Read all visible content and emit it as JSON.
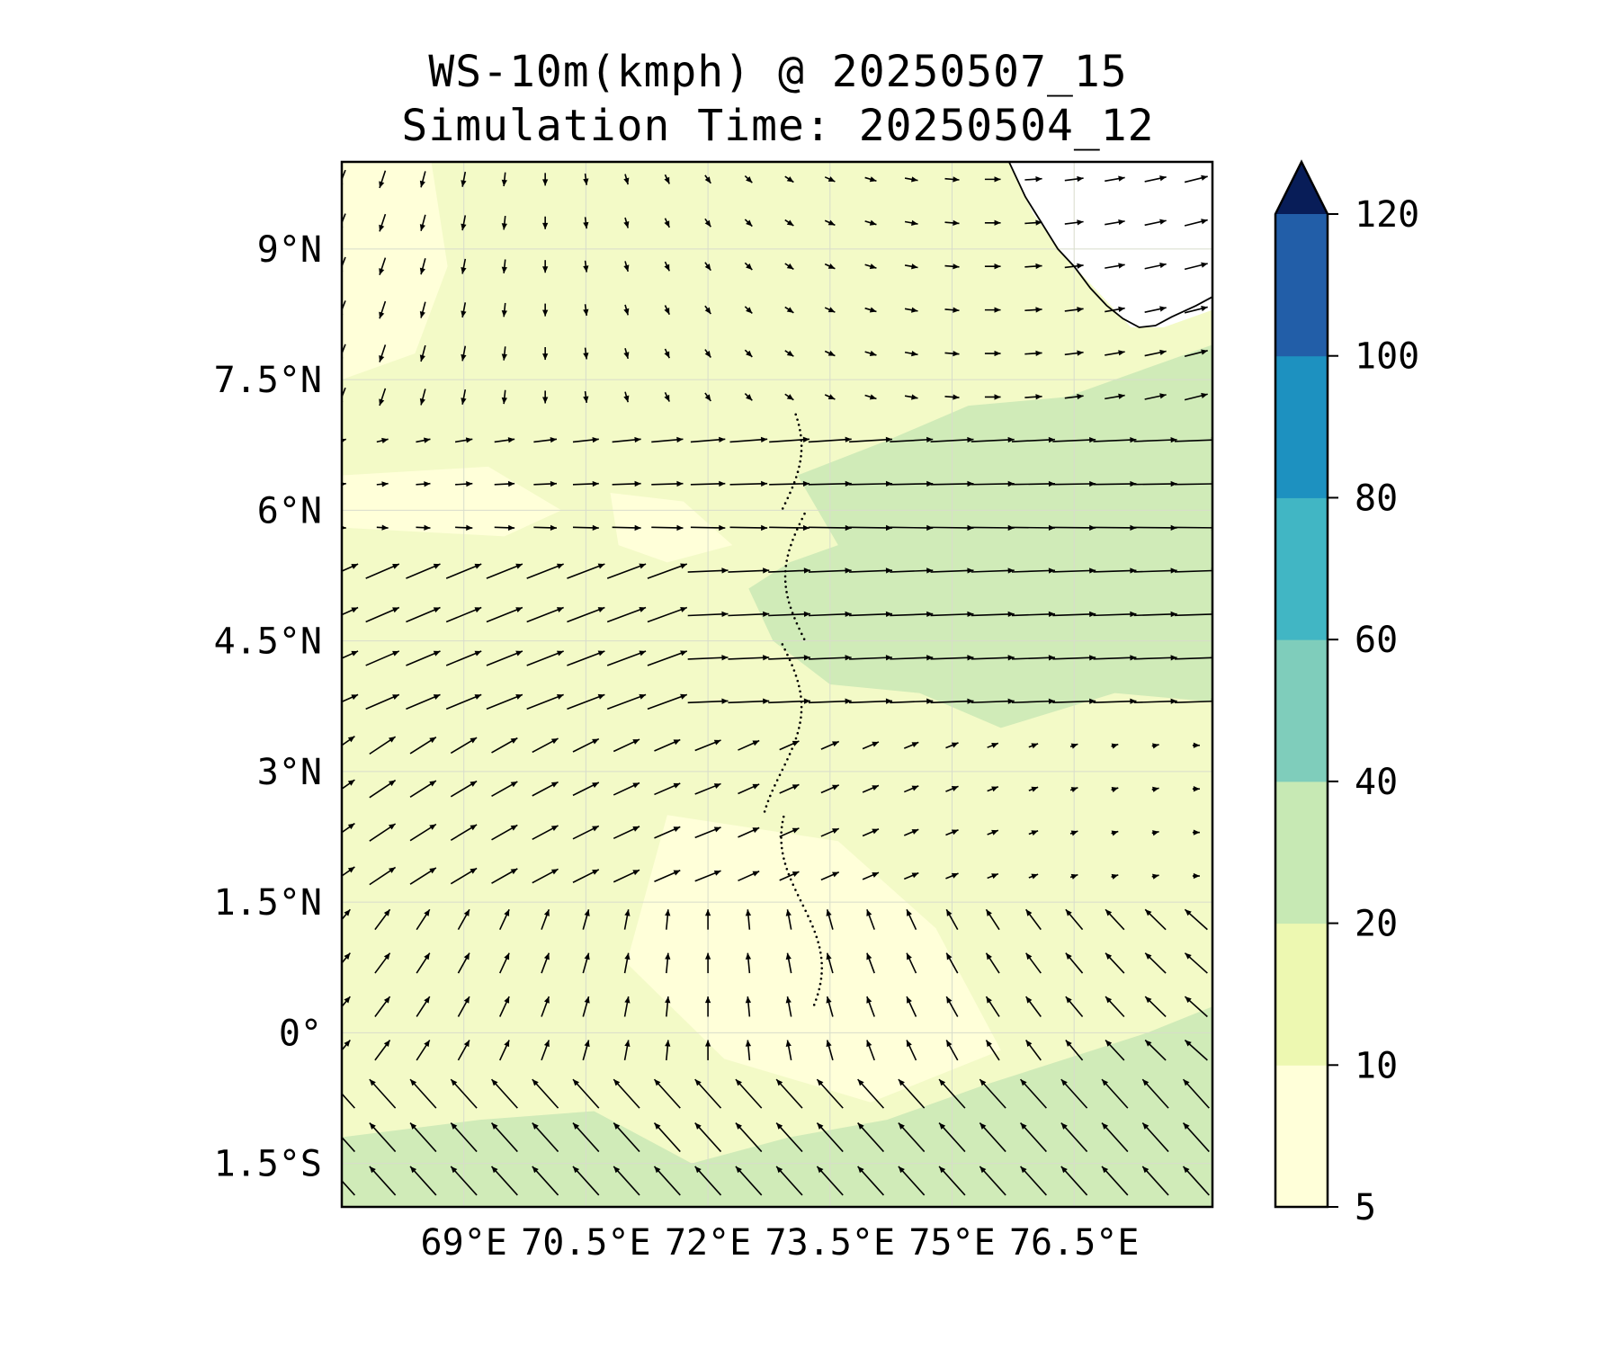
{
  "title_line1": "WS-10m(kmph) @ 20250507_15",
  "title_line2": "Simulation Time: 20250504_12",
  "chart_data": {
    "type": "heatmap",
    "variable": "WS-10m(kmph)",
    "xlim": [
      67.5,
      78.2
    ],
    "ylim": [
      -2.0,
      10.0
    ],
    "x_ticks": [
      {
        "value": 69.0,
        "label": "69°E"
      },
      {
        "value": 70.5,
        "label": "70.5°E"
      },
      {
        "value": 72.0,
        "label": "72°E"
      },
      {
        "value": 73.5,
        "label": "73.5°E"
      },
      {
        "value": 75.0,
        "label": "75°E"
      },
      {
        "value": 76.5,
        "label": "76.5°E"
      }
    ],
    "y_ticks": [
      {
        "value": 9.0,
        "label": "9°N"
      },
      {
        "value": 7.5,
        "label": "7.5°N"
      },
      {
        "value": 6.0,
        "label": "6°N"
      },
      {
        "value": 4.5,
        "label": "4.5°N"
      },
      {
        "value": 3.0,
        "label": "3°N"
      },
      {
        "value": 1.5,
        "label": "1.5°N"
      },
      {
        "value": 0.0,
        "label": "0°"
      },
      {
        "value": -1.5,
        "label": "1.5°S"
      }
    ],
    "grid": true,
    "colorbar": {
      "levels": [
        5,
        10,
        20,
        40,
        60,
        80,
        100,
        120
      ],
      "labels": [
        "5",
        "10",
        "20",
        "40",
        "60",
        "80",
        "100",
        "120"
      ],
      "colors": [
        "#ffffd9",
        "#edf8b1",
        "#c7e9b4",
        "#7fcdbb",
        "#41b6c4",
        "#1d91c0",
        "#225ea8",
        "#253494"
      ],
      "extend_color": "#081d58",
      "extend": "max"
    },
    "filled_regions": [
      {
        "level_band": "20-40",
        "color": "#d0ebb8",
        "description_points": [
          [
            73.0,
            7.0
          ],
          [
            78.2,
            7.5
          ],
          [
            78.2,
            3.8
          ],
          [
            73.0,
            4.3
          ]
        ]
      },
      {
        "level_band": "20-40",
        "color": "#d0ebb8",
        "description_points": [
          [
            67.5,
            -0.8
          ],
          [
            78.2,
            0.0
          ],
          [
            78.2,
            -2.0
          ],
          [
            67.5,
            -2.0
          ]
        ]
      }
    ],
    "land_label_region": "Sri Lanka / India coast, top-right",
    "quiver": "wind direction arrows"
  }
}
